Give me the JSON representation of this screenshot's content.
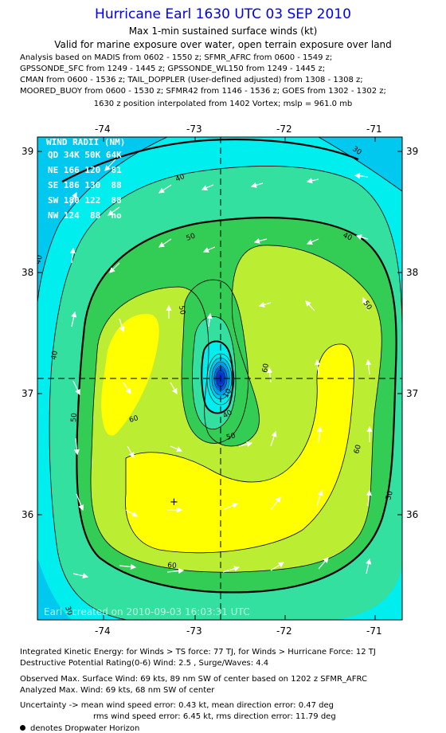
{
  "header": {
    "title": "Hurricane Earl 1630 UTC 03 SEP 2010",
    "subtitle": "Max 1-min sustained surface winds (kt)",
    "validity": "Valid for marine exposure over water, open terrain exposure over land",
    "analysis_lines": [
      "Analysis based on MADIS from 0602 - 1550 z; SFMR_AFRC from 0600 - 1549 z;",
      "GPSSONDE_SFC from 1249 - 1445 z; GPSSONDE_WL150 from 1249 - 1445 z;",
      "CMAN from 0600 - 1536 z; TAIL_DOPPLER (User-defined adjusted) from 1308 - 1308 z;",
      "MOORED_BUOY from 0600 - 1530 z; SFMR42 from 1146 - 1536 z; GOES from 1302 - 1302 z;"
    ],
    "position_note": "1630 z position interpolated from 1402 Vortex; mslp = 961.0 mb"
  },
  "map": {
    "lon_ticks": [
      "-74",
      "-73",
      "-72",
      "-71"
    ],
    "lat_ticks": [
      "39",
      "38",
      "37",
      "36"
    ],
    "wind_radii": {
      "title": "WIND RADII (NM)",
      "header": "QD 34K 50K 64K",
      "rows": [
        "NE 166 120  81",
        "SE 186 130  88",
        "SW 180 122  88",
        "NW 124  88  no"
      ]
    },
    "contour_labels": [
      "30",
      "40",
      "40",
      "40",
      "40",
      "50",
      "50",
      "50",
      "50",
      "50",
      "60",
      "60",
      "60",
      "60",
      "50",
      "40",
      "30",
      "10"
    ],
    "watermark": "Earl - created on 2010-09-03 16:03:31 UTC",
    "colors": {
      "cyan": "#00eeee",
      "light_green": "#33e088",
      "green": "#33cc55",
      "yellow_green": "#bbee33",
      "yellow": "#ffff00",
      "blue_core": "#0033cc"
    }
  },
  "footer": {
    "ike": "Integrated Kinetic Energy:  for Winds > TS force: 77 TJ,  for Winds > Hurricane Force: 12 TJ",
    "dpr": "Destructive Potential Rating(0-6)   Wind: 2.5 , Surge/Waves: 4.4",
    "obs_max": "Observed Max. Surface Wind: 69 kts, 89 nm SW of center based on 1202 z SFMR_AFRC",
    "analyzed_max": "Analyzed Max. Wind: 69 kts, 68 nm SW of center",
    "uncertainty1": "Uncertainty -> mean wind speed error: 0.43 kt,   mean direction error: 0.47 deg",
    "uncertainty2": "rms wind speed error: 6.45 kt,   rms direction error: 11.79 deg",
    "legend": "denotes Dropwater Horizon"
  }
}
